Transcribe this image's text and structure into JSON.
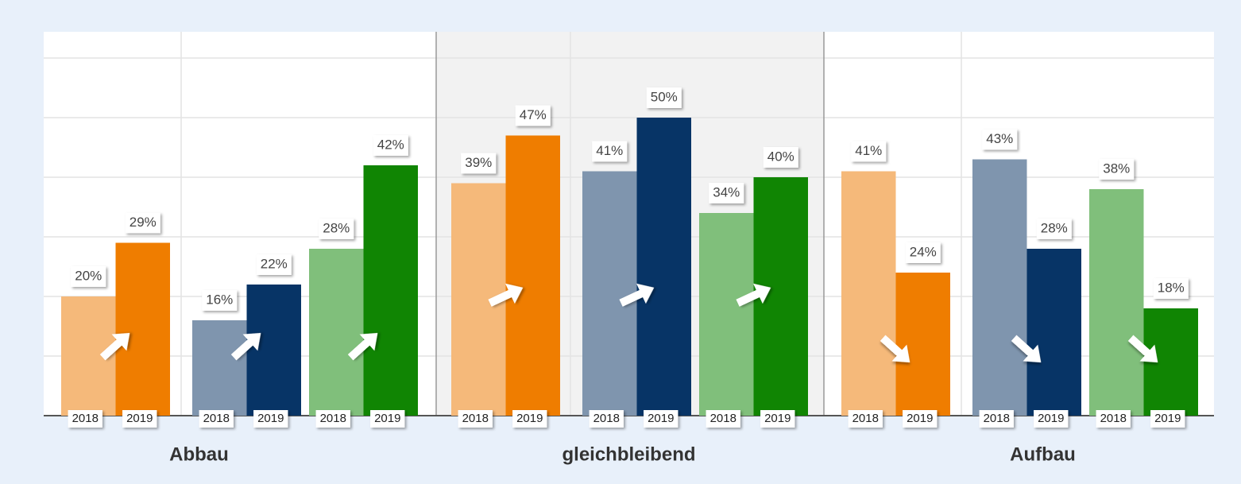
{
  "chart_data": {
    "type": "bar",
    "categories": [
      "Abbau",
      "gleichbleibend",
      "Aufbau"
    ],
    "years": [
      "2018",
      "2019"
    ],
    "series": [
      {
        "colors": [
          "#f5b97a",
          "#ef7d00"
        ],
        "values": [
          [
            20,
            29
          ],
          [
            39,
            47
          ],
          [
            41,
            24
          ]
        ],
        "value_labels": [
          [
            "20%",
            "29%"
          ],
          [
            "39%",
            "47%"
          ],
          [
            "41%",
            "24%"
          ]
        ]
      },
      {
        "colors": [
          "#7f95ae",
          "#073466"
        ],
        "values": [
          [
            16,
            22
          ],
          [
            41,
            50
          ],
          [
            43,
            28
          ]
        ],
        "value_labels": [
          [
            "16%",
            "22%"
          ],
          [
            "41%",
            "50%"
          ],
          [
            "43%",
            "28%"
          ]
        ]
      },
      {
        "colors": [
          "#80bf7b",
          "#108503"
        ],
        "values": [
          [
            28,
            42
          ],
          [
            34,
            40
          ],
          [
            38,
            18
          ]
        ],
        "value_labels": [
          [
            "28%",
            "42%"
          ],
          [
            "34%",
            "40%"
          ],
          [
            "38%",
            "18%"
          ]
        ]
      }
    ],
    "ylim": [
      0,
      64.4
    ],
    "yticks": [
      0,
      10,
      20,
      30,
      40,
      50,
      60
    ],
    "grid": true
  }
}
